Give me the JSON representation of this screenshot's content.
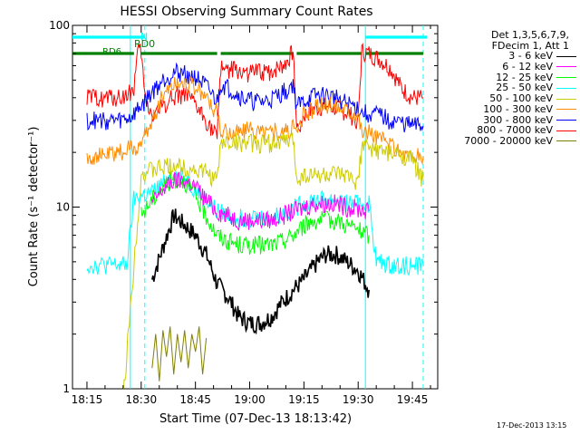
{
  "chart_data": {
    "type": "line",
    "title": "HESSI Observing Summary Count Rates",
    "xlabel": "Start Time (07-Dec-13 18:13:42)",
    "ylabel": "Count Rate (s⁻¹ detector⁻¹)",
    "x_ticks": [
      "18:15",
      "18:30",
      "18:45",
      "19:00",
      "19:15",
      "19:30",
      "19:45"
    ],
    "xlim": [
      "18:11",
      "19:52"
    ],
    "y_scale": "log",
    "ylim": [
      1,
      100
    ],
    "y_ticks": [
      1,
      10,
      100
    ],
    "grid": false,
    "legend_header": [
      "Det 1,3,5,6,7,9,",
      "FDecim 1, Att 1"
    ],
    "legend_position": "right",
    "series": [
      {
        "name": "3 - 6 keV",
        "color": "#000000",
        "points": [
          [
            "18:33",
            4.0
          ],
          [
            "18:36",
            6.0
          ],
          [
            "18:39",
            9.0
          ],
          [
            "18:42",
            8.0
          ],
          [
            "18:45",
            7.0
          ],
          [
            "18:48",
            5.5
          ],
          [
            "18:51",
            3.8
          ],
          [
            "18:54",
            3.2
          ],
          [
            "18:57",
            2.5
          ],
          [
            "19:00",
            2.3
          ],
          [
            "19:03",
            2.3
          ],
          [
            "19:06",
            2.5
          ],
          [
            "19:09",
            3.0
          ],
          [
            "19:12",
            3.5
          ],
          [
            "19:15",
            4.0
          ],
          [
            "19:18",
            4.8
          ],
          [
            "19:21",
            5.5
          ],
          [
            "19:24",
            5.5
          ],
          [
            "19:27",
            5.0
          ],
          [
            "19:30",
            4.5
          ],
          [
            "19:33",
            3.5
          ]
        ]
      },
      {
        "name": "6 - 12 keV",
        "color": "#ff00ff",
        "points": [
          [
            "18:33",
            10.5
          ],
          [
            "18:36",
            12.5
          ],
          [
            "18:39",
            14.0
          ],
          [
            "18:42",
            14.0
          ],
          [
            "18:45",
            13.0
          ],
          [
            "18:48",
            11.0
          ],
          [
            "18:51",
            9.5
          ],
          [
            "18:54",
            9.0
          ],
          [
            "18:57",
            8.5
          ],
          [
            "19:00",
            8.5
          ],
          [
            "19:03",
            8.5
          ],
          [
            "19:06",
            8.5
          ],
          [
            "19:09",
            9.0
          ],
          [
            "19:12",
            9.5
          ],
          [
            "19:15",
            10.0
          ],
          [
            "19:18",
            10.5
          ],
          [
            "19:21",
            10.5
          ],
          [
            "19:24",
            10.5
          ],
          [
            "19:27",
            10.0
          ],
          [
            "19:30",
            9.8
          ],
          [
            "19:33",
            9.5
          ]
        ]
      },
      {
        "name": "12 - 25 keV",
        "color": "#00ff00",
        "points": [
          [
            "18:30",
            9.0
          ],
          [
            "18:33",
            11.0
          ],
          [
            "18:36",
            13.0
          ],
          [
            "18:39",
            14.5
          ],
          [
            "18:42",
            14.0
          ],
          [
            "18:45",
            11.5
          ],
          [
            "18:48",
            9.0
          ],
          [
            "18:51",
            7.0
          ],
          [
            "18:54",
            6.5
          ],
          [
            "18:57",
            6.2
          ],
          [
            "19:00",
            6.2
          ],
          [
            "19:03",
            6.2
          ],
          [
            "19:06",
            6.2
          ],
          [
            "19:09",
            6.5
          ],
          [
            "19:12",
            7.0
          ],
          [
            "19:15",
            8.0
          ],
          [
            "19:18",
            8.5
          ],
          [
            "19:21",
            8.5
          ],
          [
            "19:24",
            8.5
          ],
          [
            "19:27",
            8.0
          ],
          [
            "19:30",
            7.5
          ],
          [
            "19:33",
            7.0
          ]
        ]
      },
      {
        "name": "25 - 50 keV",
        "color": "#00ffff",
        "points": [
          [
            "18:15",
            4.8
          ],
          [
            "18:18",
            4.8
          ],
          [
            "18:21",
            4.8
          ],
          [
            "18:24",
            4.8
          ],
          [
            "18:26",
            4.8
          ],
          [
            "18:28",
            11.0
          ],
          [
            "18:30",
            11.5
          ],
          [
            "18:33",
            12.0
          ],
          [
            "18:36",
            13.5
          ],
          [
            "18:39",
            15.0
          ],
          [
            "18:42",
            14.5
          ],
          [
            "18:45",
            12.5
          ],
          [
            "18:48",
            11.0
          ],
          [
            "18:51",
            9.5
          ],
          [
            "18:54",
            9.0
          ],
          [
            "18:57",
            8.8
          ],
          [
            "19:00",
            8.8
          ],
          [
            "19:03",
            8.8
          ],
          [
            "19:06",
            8.8
          ],
          [
            "19:09",
            9.2
          ],
          [
            "19:12",
            9.8
          ],
          [
            "19:15",
            10.5
          ],
          [
            "19:18",
            11.0
          ],
          [
            "19:21",
            11.0
          ],
          [
            "19:24",
            11.0
          ],
          [
            "19:27",
            10.5
          ],
          [
            "19:30",
            10.5
          ],
          [
            "19:33",
            10.5
          ],
          [
            "19:35",
            5.0
          ],
          [
            "19:39",
            4.8
          ],
          [
            "19:42",
            4.8
          ],
          [
            "19:45",
            4.8
          ],
          [
            "19:48",
            4.8
          ]
        ]
      },
      {
        "name": "50 - 100 keV",
        "color": "#cccc00",
        "points": [
          [
            "18:15",
            0
          ],
          [
            "18:21",
            0
          ],
          [
            "18:24",
            0
          ],
          [
            "18:30",
            15.0
          ],
          [
            "18:33",
            16.0
          ],
          [
            "18:36",
            16.5
          ],
          [
            "18:39",
            17.0
          ],
          [
            "18:42",
            16.5
          ],
          [
            "18:45",
            16.0
          ],
          [
            "18:48",
            15.5
          ],
          [
            "18:51",
            14.0
          ],
          [
            "18:52",
            22.5
          ],
          [
            "18:55",
            23.0
          ],
          [
            "19:00",
            22.5
          ],
          [
            "19:05",
            22.5
          ],
          [
            "19:10",
            23.0
          ],
          [
            "19:12",
            23.5
          ],
          [
            "19:13",
            14.5
          ],
          [
            "19:15",
            15.0
          ],
          [
            "19:18",
            15.0
          ],
          [
            "19:21",
            15.0
          ],
          [
            "19:24",
            15.0
          ],
          [
            "19:27",
            14.5
          ],
          [
            "19:30",
            14.0
          ],
          [
            "19:31",
            21.5
          ],
          [
            "19:33",
            21.0
          ],
          [
            "19:36",
            20.5
          ],
          [
            "19:39",
            19.5
          ],
          [
            "19:42",
            19.5
          ],
          [
            "19:45",
            18.0
          ],
          [
            "19:48",
            14.0
          ]
        ]
      },
      {
        "name": "100 - 300 keV",
        "color": "#ff8c00",
        "points": [
          [
            "18:15",
            19.0
          ],
          [
            "18:18",
            19.0
          ],
          [
            "18:21",
            19.5
          ],
          [
            "18:24",
            20.0
          ],
          [
            "18:27",
            21.0
          ],
          [
            "18:30",
            22.0
          ],
          [
            "18:33",
            30.0
          ],
          [
            "18:36",
            42.0
          ],
          [
            "18:39",
            48.0
          ],
          [
            "18:42",
            49.0
          ],
          [
            "18:45",
            46.0
          ],
          [
            "18:48",
            40.0
          ],
          [
            "18:51",
            33.0
          ],
          [
            "18:52",
            25.5
          ],
          [
            "18:55",
            26.0
          ],
          [
            "19:00",
            26.5
          ],
          [
            "19:05",
            26.0
          ],
          [
            "19:10",
            26.0
          ],
          [
            "19:12",
            27.0
          ],
          [
            "19:13",
            26.0
          ],
          [
            "19:15",
            32.0
          ],
          [
            "19:18",
            35.0
          ],
          [
            "19:21",
            37.0
          ],
          [
            "19:24",
            36.0
          ],
          [
            "19:27",
            35.0
          ],
          [
            "19:30",
            33.0
          ],
          [
            "19:31",
            26.0
          ],
          [
            "19:33",
            26.0
          ],
          [
            "19:36",
            24.0
          ],
          [
            "19:39",
            22.0
          ],
          [
            "19:42",
            20.0
          ],
          [
            "19:45",
            19.0
          ],
          [
            "19:48",
            19.0
          ]
        ]
      },
      {
        "name": "300 - 800 keV",
        "color": "#0000ff",
        "points": [
          [
            "18:15",
            30.0
          ],
          [
            "18:18",
            30.0
          ],
          [
            "18:21",
            30.0
          ],
          [
            "18:24",
            30.0
          ],
          [
            "18:27",
            31.0
          ],
          [
            "18:30",
            36.0
          ],
          [
            "18:33",
            43.0
          ],
          [
            "18:36",
            50.0
          ],
          [
            "18:39",
            55.0
          ],
          [
            "18:42",
            55.0
          ],
          [
            "18:45",
            52.0
          ],
          [
            "18:48",
            46.0
          ],
          [
            "18:51",
            38.0
          ],
          [
            "18:52",
            48.0
          ],
          [
            "18:55",
            44.0
          ],
          [
            "18:58",
            40.0
          ],
          [
            "19:01",
            38.0
          ],
          [
            "19:04",
            38.0
          ],
          [
            "19:07",
            40.0
          ],
          [
            "19:10",
            44.0
          ],
          [
            "19:12",
            48.0
          ],
          [
            "19:13",
            36.0
          ],
          [
            "19:15",
            38.0
          ],
          [
            "19:18",
            41.0
          ],
          [
            "19:21",
            41.0
          ],
          [
            "19:24",
            40.0
          ],
          [
            "19:27",
            37.0
          ],
          [
            "19:30",
            35.0
          ],
          [
            "19:31",
            33.0
          ],
          [
            "19:33",
            33.0
          ],
          [
            "19:36",
            32.0
          ],
          [
            "19:39",
            30.0
          ],
          [
            "19:42",
            29.0
          ],
          [
            "19:45",
            28.0
          ],
          [
            "19:48",
            28.0
          ]
        ]
      },
      {
        "name": "800 - 7000 keV",
        "color": "#ff0000",
        "points": [
          [
            "18:15",
            40.0
          ],
          [
            "18:18",
            40.0
          ],
          [
            "18:21",
            40.0
          ],
          [
            "18:24",
            40.0
          ],
          [
            "18:26",
            41.0
          ],
          [
            "18:28",
            45.0
          ],
          [
            "18:29",
            70.0
          ],
          [
            "18:30",
            72.0
          ],
          [
            "18:31",
            40.0
          ],
          [
            "18:33",
            32.0
          ],
          [
            "18:36",
            36.0
          ],
          [
            "18:39",
            41.0
          ],
          [
            "18:42",
            42.0
          ],
          [
            "18:45",
            36.0
          ],
          [
            "18:48",
            30.0
          ],
          [
            "18:51",
            24.0
          ],
          [
            "18:52",
            60.0
          ],
          [
            "18:55",
            57.0
          ],
          [
            "18:58",
            55.0
          ],
          [
            "19:01",
            55.0
          ],
          [
            "19:04",
            55.0
          ],
          [
            "19:07",
            57.0
          ],
          [
            "19:10",
            62.0
          ],
          [
            "19:12",
            72.0
          ],
          [
            "19:13",
            27.0
          ],
          [
            "19:15",
            32.0
          ],
          [
            "19:18",
            35.0
          ],
          [
            "19:21",
            36.0
          ],
          [
            "19:24",
            35.0
          ],
          [
            "19:27",
            33.0
          ],
          [
            "19:30",
            30.0
          ],
          [
            "19:31",
            72.0
          ],
          [
            "19:33",
            70.0
          ],
          [
            "19:36",
            65.0
          ],
          [
            "19:39",
            58.0
          ],
          [
            "19:42",
            45.0
          ],
          [
            "19:45",
            40.0
          ],
          [
            "19:48",
            40.0
          ]
        ]
      },
      {
        "name": "7000 - 20000 keV",
        "color": "#808000",
        "points": [
          [
            "18:33",
            1.3
          ],
          [
            "18:34",
            2.0
          ],
          [
            "18:35",
            1.1
          ],
          [
            "18:36",
            2.1
          ],
          [
            "18:37",
            1.5
          ],
          [
            "18:38",
            2.2
          ],
          [
            "18:39",
            1.2
          ],
          [
            "18:40",
            2.0
          ],
          [
            "18:41",
            1.4
          ],
          [
            "18:42",
            2.1
          ],
          [
            "18:43",
            1.3
          ],
          [
            "18:44",
            2.0
          ],
          [
            "18:45",
            1.6
          ],
          [
            "18:46",
            2.2
          ],
          [
            "18:47",
            1.2
          ],
          [
            "18:48",
            1.9
          ]
        ]
      }
    ],
    "annotations": [
      {
        "text": "N",
        "color": "#00ffff"
      },
      {
        "text": "RD0",
        "color": "#008000"
      },
      {
        "text": "RD6",
        "color": "#008000"
      }
    ],
    "status_bars": [
      {
        "name": "night",
        "color": "#00ffff",
        "intervals": [
          [
            "18:11",
            "18:31"
          ],
          [
            "19:32",
            "19:49"
          ]
        ]
      },
      {
        "name": "saa",
        "color": "#008000",
        "intervals": [
          [
            "18:11",
            "18:28"
          ],
          [
            "18:30",
            "18:51"
          ],
          [
            "18:52",
            "19:12"
          ],
          [
            "19:13",
            "19:31"
          ],
          [
            "19:32",
            "19:48"
          ]
        ]
      }
    ],
    "vertical_lines": [
      {
        "x": "18:27",
        "color": "#00ffff",
        "style": "solid"
      },
      {
        "x": "18:31",
        "color": "#00ffff",
        "style": "dashed"
      },
      {
        "x": "19:32",
        "color": "#00ffff",
        "style": "solid"
      },
      {
        "x": "19:48",
        "color": "#00ffff",
        "style": "dashed"
      }
    ],
    "date_stamp": "17-Dec-2013 13:15"
  }
}
